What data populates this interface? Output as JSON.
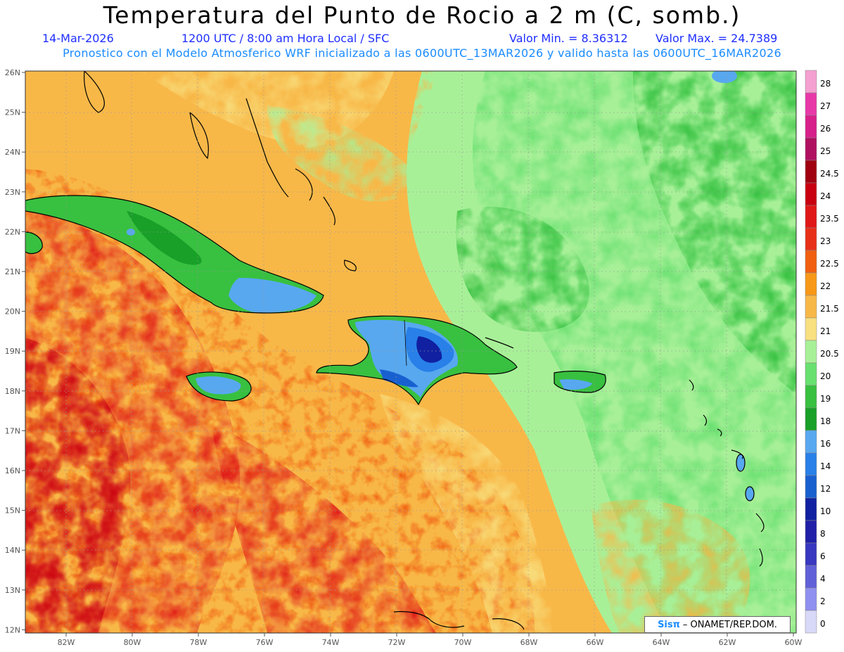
{
  "header": {
    "title": "Temperatura del Punto de Rocio a 2 m (C, somb.)",
    "date": "14-Mar-2026",
    "time": "1200 UTC / 8:00 am Hora Local / SFC",
    "vmin": "Valor Min. = 8.36312",
    "vmax": "Valor Max. = 24.7389",
    "forecast": "Pronostico con el Modelo Atmosferico WRF inicializado a las 0600UTC_13MAR2026 y valido hasta las  0600UTC_16MAR2026"
  },
  "credit": {
    "logo": "Sisπ",
    "text": "– ONAMET/REP.DOM."
  },
  "map": {
    "lon_labels": [
      "82W",
      "80W",
      "78W",
      "76W",
      "74W",
      "72W",
      "70W",
      "68W",
      "66W",
      "64W",
      "62W",
      "60W"
    ],
    "lat_labels": [
      "26N",
      "25N",
      "24N",
      "23N",
      "22N",
      "21N",
      "20N",
      "19N",
      "18N",
      "17N",
      "16N",
      "15N",
      "14N",
      "13N",
      "12N"
    ]
  },
  "colorbar": {
    "labels": [
      "28",
      "27",
      "26",
      "25",
      "24.5",
      "24",
      "23.5",
      "23",
      "22.5",
      "22",
      "21.5",
      "21",
      "20.5",
      "20",
      "19",
      "18",
      "16",
      "14",
      "12",
      "10",
      "8",
      "6",
      "4",
      "2",
      "0"
    ],
    "colors": [
      "#f4a0d0",
      "#e838a8",
      "#d8208a",
      "#b01060",
      "#a00010",
      "#c80010",
      "#e01818",
      "#e83018",
      "#f06010",
      "#f89818",
      "#f8b848",
      "#f8e080",
      "#a8f098",
      "#68e070",
      "#38c040",
      "#18a028",
      "#58a8f0",
      "#2880e8",
      "#1860d0",
      "#1020a0",
      "#2020a8",
      "#3838c0",
      "#6060d8",
      "#9090f0",
      "#d8d8f8"
    ]
  }
}
